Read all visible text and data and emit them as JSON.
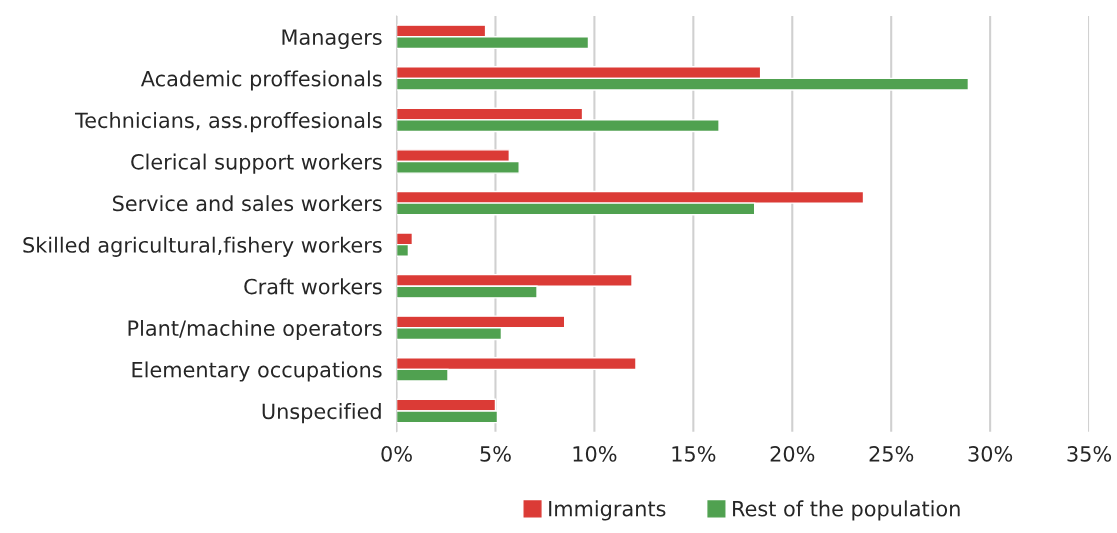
{
  "chart_data": {
    "type": "bar",
    "orientation": "horizontal",
    "categories": [
      "Managers",
      "Academic proffesionals",
      "Technicians, ass.proffesionals",
      "Clerical support workers",
      "Service and sales workers",
      "Skilled agricultural,fishery workers",
      "Craft workers",
      "Plant/machine operators",
      "Elementary occupations",
      "Unspecified"
    ],
    "series": [
      {
        "name": "Immigrants",
        "color": "#db3b36",
        "values": [
          4.5,
          18.4,
          9.4,
          5.7,
          23.6,
          0.8,
          11.9,
          8.5,
          12.1,
          5.0
        ]
      },
      {
        "name": "Rest of the population",
        "color": "#50a150",
        "values": [
          9.7,
          28.9,
          16.3,
          6.2,
          18.1,
          0.6,
          7.1,
          5.3,
          2.6,
          5.1
        ]
      }
    ],
    "xlim": [
      0,
      35
    ],
    "xticks": [
      {
        "value": 0,
        "label": "0%"
      },
      {
        "value": 5,
        "label": "5%"
      },
      {
        "value": 10,
        "label": "10%"
      },
      {
        "value": 15,
        "label": "15%"
      },
      {
        "value": 20,
        "label": "20%"
      },
      {
        "value": 25,
        "label": "25%"
      },
      {
        "value": 30,
        "label": "30%"
      },
      {
        "value": 35,
        "label": "35%"
      }
    ],
    "grid": "x",
    "legend": "bottom"
  }
}
